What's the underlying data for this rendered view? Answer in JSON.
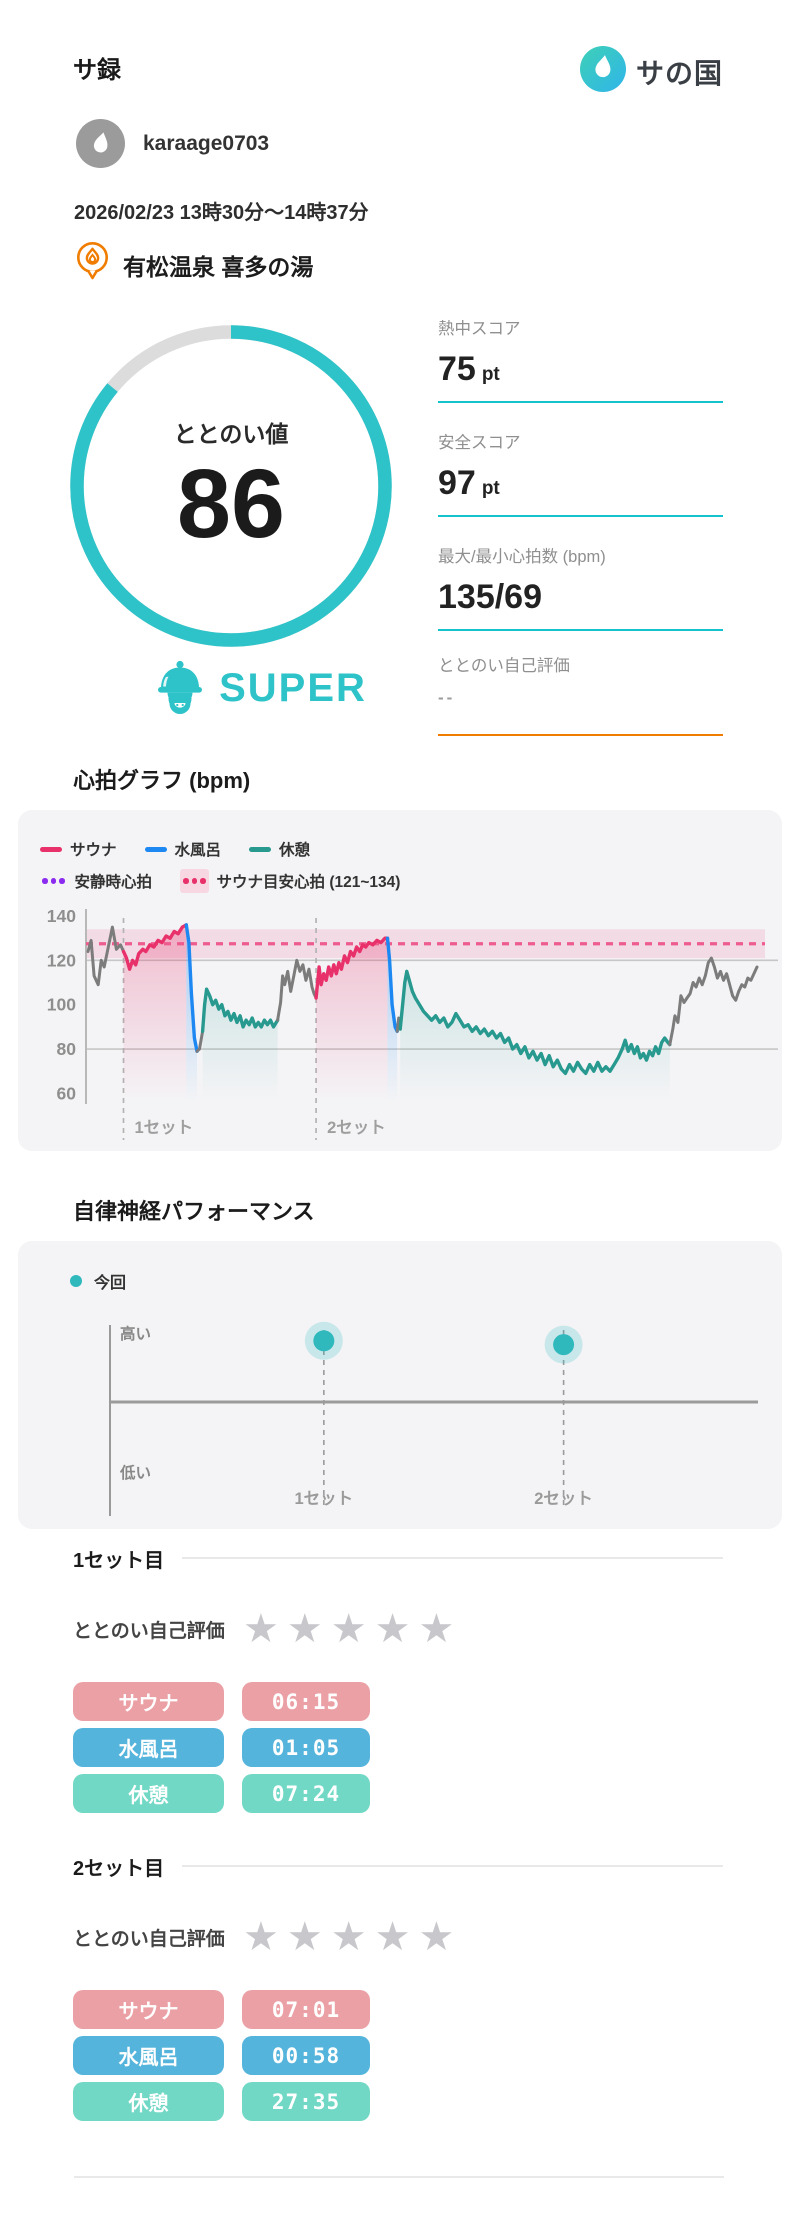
{
  "header": {
    "app_title": "サ録",
    "logo_text": "サの国"
  },
  "user": {
    "name": "karaage0703"
  },
  "session": {
    "datetime": "2026/02/23 13時30分〜14時37分",
    "venue": "有松温泉 喜多の湯"
  },
  "score": {
    "label": "ととのい値",
    "value": "86",
    "rating": "SUPER"
  },
  "stats": [
    {
      "label": "熱中スコア",
      "value": "75",
      "unit": "pt",
      "underline": "teal"
    },
    {
      "label": "安全スコア",
      "value": "97",
      "unit": "pt",
      "underline": "teal"
    },
    {
      "label": "最大/最小心拍数 (bpm)",
      "value": "135/69",
      "unit": "",
      "underline": "teal"
    },
    {
      "label": "ととのい自己評価",
      "value": "--",
      "unit": "",
      "underline": "orange"
    }
  ],
  "hr_section": {
    "title": "心拍グラフ (bpm)",
    "legend_lines": [
      {
        "type": "line",
        "color": "#e8316b",
        "label": "サウナ"
      },
      {
        "type": "line",
        "color": "#1e88f2",
        "label": "水風呂"
      },
      {
        "type": "line",
        "color": "#27998f",
        "label": "休憩"
      }
    ],
    "legend_dots": [
      {
        "type": "dots",
        "color": "#8b2bf0",
        "band": false,
        "label": "安静時心拍"
      },
      {
        "type": "dots",
        "color": "#e8316b",
        "band": true,
        "label": "サウナ目安心拍 (121~134)"
      }
    ]
  },
  "auto_section": {
    "title": "自律神経パフォーマンス",
    "legend_label": "今回",
    "high_label": "高い",
    "low_label": "低い"
  },
  "sets": [
    {
      "title": "1セット目",
      "rating_label": "ととのい自己評価",
      "stars_max": 5,
      "stars_value": 0,
      "rows": [
        {
          "label": "サウナ",
          "time": "06:15",
          "color": "#eba0a5"
        },
        {
          "label": "水風呂",
          "time": "01:05",
          "color": "#54b4db"
        },
        {
          "label": "休憩",
          "time": "07:24",
          "color": "#70d8c5"
        }
      ]
    },
    {
      "title": "2セット目",
      "rating_label": "ととのい自己評価",
      "stars_max": 5,
      "stars_value": 0,
      "rows": [
        {
          "label": "サウナ",
          "time": "07:01",
          "color": "#eba0a5"
        },
        {
          "label": "水風呂",
          "time": "00:58",
          "color": "#54b4db"
        },
        {
          "label": "休憩",
          "time": "27:35",
          "color": "#70d8c5"
        }
      ]
    }
  ],
  "colors": {
    "accent_teal": "#2ec3c8",
    "underline_teal": "#13c4cf",
    "orange": "#f07d00",
    "sauna": "#e8316b",
    "water": "#1e88f2",
    "rest": "#27998f",
    "gray_line": "#7c7c7c",
    "purple": "#8b2bf0",
    "target_pink": "#ee5c8e",
    "band_pink": "rgba(240,95,145,0.16)"
  },
  "chart_data": [
    {
      "type": "line",
      "title": "心拍グラフ (bpm)",
      "ylabel": "bpm",
      "yticks": [
        140,
        120,
        100,
        80,
        60
      ],
      "grid_yticks": [
        120,
        80
      ],
      "ylim": [
        57,
        143
      ],
      "xlim_minutes": [
        0,
        66.5
      ],
      "target_band_bpm": [
        121,
        134
      ],
      "target_line_bpm": 127.5,
      "set_markers": [
        {
          "label": "1セット",
          "t": 3.7
        },
        {
          "label": "2セット",
          "t": 22.7
        }
      ],
      "gauge_score": 86,
      "heat_score_pt": 75,
      "safety_score_pt": 97,
      "max_min_bpm": "135/69",
      "segments": [
        {
          "phase": "gray",
          "points": [
            [
              0.2,
              124
            ],
            [
              0.5,
              129
            ],
            [
              0.8,
              113
            ],
            [
              1.2,
              109
            ],
            [
              1.5,
              120
            ],
            [
              1.8,
              117
            ],
            [
              2.2,
              126
            ],
            [
              2.6,
              135
            ],
            [
              3.0,
              125
            ],
            [
              3.4,
              127
            ],
            [
              3.7,
              124
            ]
          ]
        },
        {
          "phase": "sauna",
          "points": [
            [
              3.7,
              124
            ],
            [
              4.0,
              121
            ],
            [
              4.3,
              116
            ],
            [
              4.6,
              120
            ],
            [
              4.9,
              118
            ],
            [
              5.2,
              123
            ],
            [
              5.6,
              125
            ],
            [
              5.9,
              124
            ],
            [
              6.3,
              127
            ],
            [
              6.7,
              126
            ],
            [
              7.1,
              129
            ],
            [
              7.5,
              128
            ],
            [
              7.9,
              131
            ],
            [
              8.3,
              130
            ],
            [
              8.7,
              133
            ],
            [
              9.1,
              132
            ],
            [
              9.5,
              135
            ],
            [
              9.9,
              136
            ]
          ]
        },
        {
          "phase": "water",
          "points": [
            [
              9.9,
              136
            ],
            [
              10.15,
              128
            ],
            [
              10.4,
              105
            ],
            [
              10.7,
              85
            ],
            [
              10.95,
              79
            ]
          ]
        },
        {
          "phase": "gray",
          "points": [
            [
              10.95,
              79
            ],
            [
              11.2,
              80
            ],
            [
              11.5,
              88
            ]
          ]
        },
        {
          "phase": "rest",
          "points": [
            [
              11.5,
              88
            ],
            [
              11.7,
              100
            ],
            [
              11.9,
              107
            ],
            [
              12.2,
              104
            ],
            [
              12.5,
              100
            ],
            [
              12.8,
              102
            ],
            [
              13.1,
              98
            ],
            [
              13.4,
              100
            ],
            [
              13.7,
              95
            ],
            [
              14.0,
              97
            ],
            [
              14.3,
              93
            ],
            [
              14.6,
              96
            ],
            [
              14.9,
              92
            ],
            [
              15.2,
              95
            ],
            [
              15.5,
              90
            ],
            [
              15.8,
              93
            ],
            [
              16.1,
              91
            ],
            [
              16.4,
              94
            ],
            [
              16.7,
              90
            ],
            [
              17.0,
              92
            ],
            [
              17.3,
              90
            ],
            [
              17.6,
              93
            ],
            [
              17.9,
              91
            ],
            [
              18.2,
              93
            ],
            [
              18.5,
              90
            ],
            [
              18.9,
              93
            ]
          ]
        },
        {
          "phase": "gray",
          "points": [
            [
              18.9,
              93
            ],
            [
              19.2,
              101
            ],
            [
              19.4,
              113
            ],
            [
              19.6,
              109
            ],
            [
              19.9,
              115
            ],
            [
              20.2,
              106
            ],
            [
              20.5,
              113
            ],
            [
              20.8,
              120
            ],
            [
              21.1,
              115
            ],
            [
              21.4,
              118
            ],
            [
              21.7,
              111
            ],
            [
              22.0,
              116
            ],
            [
              22.3,
              108
            ],
            [
              22.5,
              105
            ],
            [
              22.7,
              103
            ]
          ]
        },
        {
          "phase": "sauna",
          "points": [
            [
              22.7,
              103
            ],
            [
              22.85,
              110
            ],
            [
              23.0,
              117
            ],
            [
              23.2,
              109
            ],
            [
              23.45,
              114
            ],
            [
              23.7,
              111
            ],
            [
              23.95,
              117
            ],
            [
              24.2,
              113
            ],
            [
              24.45,
              118
            ],
            [
              24.7,
              114
            ],
            [
              24.95,
              119
            ],
            [
              25.2,
              116
            ],
            [
              25.5,
              122
            ],
            [
              25.8,
              119
            ],
            [
              26.1,
              124
            ],
            [
              26.4,
              122
            ],
            [
              26.7,
              126
            ],
            [
              27.0,
              124
            ],
            [
              27.3,
              127
            ],
            [
              27.6,
              126
            ],
            [
              27.9,
              128
            ],
            [
              28.3,
              127
            ],
            [
              28.7,
              129
            ],
            [
              29.1,
              128
            ],
            [
              29.5,
              130
            ],
            [
              29.75,
              130
            ]
          ]
        },
        {
          "phase": "water",
          "points": [
            [
              29.75,
              130
            ],
            [
              29.95,
              120
            ],
            [
              30.2,
              100
            ],
            [
              30.5,
              90
            ],
            [
              30.7,
              88
            ]
          ]
        },
        {
          "phase": "gray",
          "points": [
            [
              30.7,
              88
            ],
            [
              30.85,
              94
            ],
            [
              31.0,
              89
            ]
          ]
        },
        {
          "phase": "rest",
          "points": [
            [
              31.0,
              89
            ],
            [
              31.2,
              98
            ],
            [
              31.45,
              110
            ],
            [
              31.65,
              115
            ],
            [
              31.9,
              111
            ],
            [
              32.2,
              106
            ],
            [
              32.5,
              103
            ],
            [
              32.9,
              100
            ],
            [
              33.3,
              97
            ],
            [
              33.7,
              95
            ],
            [
              34.1,
              93
            ],
            [
              34.5,
              95
            ],
            [
              34.9,
              92
            ],
            [
              35.3,
              94
            ],
            [
              35.7,
              90
            ],
            [
              36.1,
              92
            ],
            [
              36.5,
              96
            ],
            [
              36.9,
              93
            ],
            [
              37.3,
              90
            ],
            [
              37.7,
              91
            ],
            [
              38.1,
              88
            ],
            [
              38.5,
              90
            ],
            [
              38.9,
              87
            ],
            [
              39.3,
              89
            ],
            [
              39.7,
              86
            ],
            [
              40.1,
              88
            ],
            [
              40.5,
              85
            ],
            [
              40.9,
              87
            ],
            [
              41.3,
              83
            ],
            [
              41.7,
              85
            ],
            [
              42.1,
              80
            ],
            [
              42.5,
              82
            ],
            [
              42.9,
              78
            ],
            [
              43.3,
              81
            ],
            [
              43.7,
              76
            ],
            [
              44.1,
              79
            ],
            [
              44.5,
              75
            ],
            [
              44.9,
              78
            ],
            [
              45.3,
              73
            ],
            [
              45.7,
              77
            ],
            [
              46.1,
              72
            ],
            [
              46.5,
              75
            ],
            [
              46.9,
              71
            ],
            [
              47.3,
              69
            ],
            [
              47.7,
              73
            ],
            [
              48.1,
              70
            ],
            [
              48.5,
              74
            ],
            [
              48.9,
              71
            ],
            [
              49.3,
              69
            ],
            [
              49.7,
              73
            ],
            [
              50.1,
              70
            ],
            [
              50.5,
              74
            ],
            [
              50.9,
              70
            ],
            [
              51.3,
              72
            ],
            [
              51.7,
              70
            ],
            [
              52.1,
              73
            ],
            [
              52.5,
              76
            ],
            [
              52.9,
              80
            ],
            [
              53.2,
              84
            ],
            [
              53.5,
              79
            ],
            [
              53.8,
              82
            ],
            [
              54.1,
              78
            ],
            [
              54.4,
              81
            ],
            [
              54.7,
              76
            ],
            [
              55.0,
              78
            ],
            [
              55.3,
              75
            ],
            [
              55.6,
              79
            ],
            [
              55.9,
              77
            ],
            [
              56.2,
              81
            ],
            [
              56.5,
              78
            ],
            [
              56.8,
              83
            ],
            [
              57.1,
              85
            ],
            [
              57.4,
              83
            ],
            [
              57.6,
              82
            ]
          ]
        },
        {
          "phase": "gray",
          "points": [
            [
              57.6,
              82
            ],
            [
              57.9,
              89
            ],
            [
              58.1,
              95
            ],
            [
              58.4,
              92
            ],
            [
              58.7,
              104
            ],
            [
              59.0,
              101
            ],
            [
              59.3,
              103
            ],
            [
              59.6,
              105
            ],
            [
              59.9,
              110
            ],
            [
              60.2,
              108
            ],
            [
              60.5,
              112
            ],
            [
              60.8,
              109
            ],
            [
              61.1,
              113
            ],
            [
              61.4,
              119
            ],
            [
              61.7,
              121
            ],
            [
              62.0,
              117
            ],
            [
              62.3,
              112
            ],
            [
              62.6,
              115
            ],
            [
              62.9,
              111
            ],
            [
              63.2,
              114
            ],
            [
              63.5,
              109
            ],
            [
              63.8,
              104
            ],
            [
              64.1,
              102
            ],
            [
              64.4,
              106
            ],
            [
              64.7,
              109
            ],
            [
              65.0,
              108
            ],
            [
              65.3,
              112
            ],
            [
              65.6,
              111
            ],
            [
              65.9,
              114
            ],
            [
              66.2,
              117
            ]
          ]
        }
      ]
    },
    {
      "type": "scatter",
      "title": "自律神経パフォーマンス",
      "y_axis_labels": {
        "high": "高い",
        "low": "低い"
      },
      "points": [
        {
          "label": "1セット",
          "fx": 0.33,
          "v": 0.8
        },
        {
          "label": "2セット",
          "fx": 0.7,
          "v": 0.75
        }
      ],
      "legend": "今回"
    }
  ]
}
